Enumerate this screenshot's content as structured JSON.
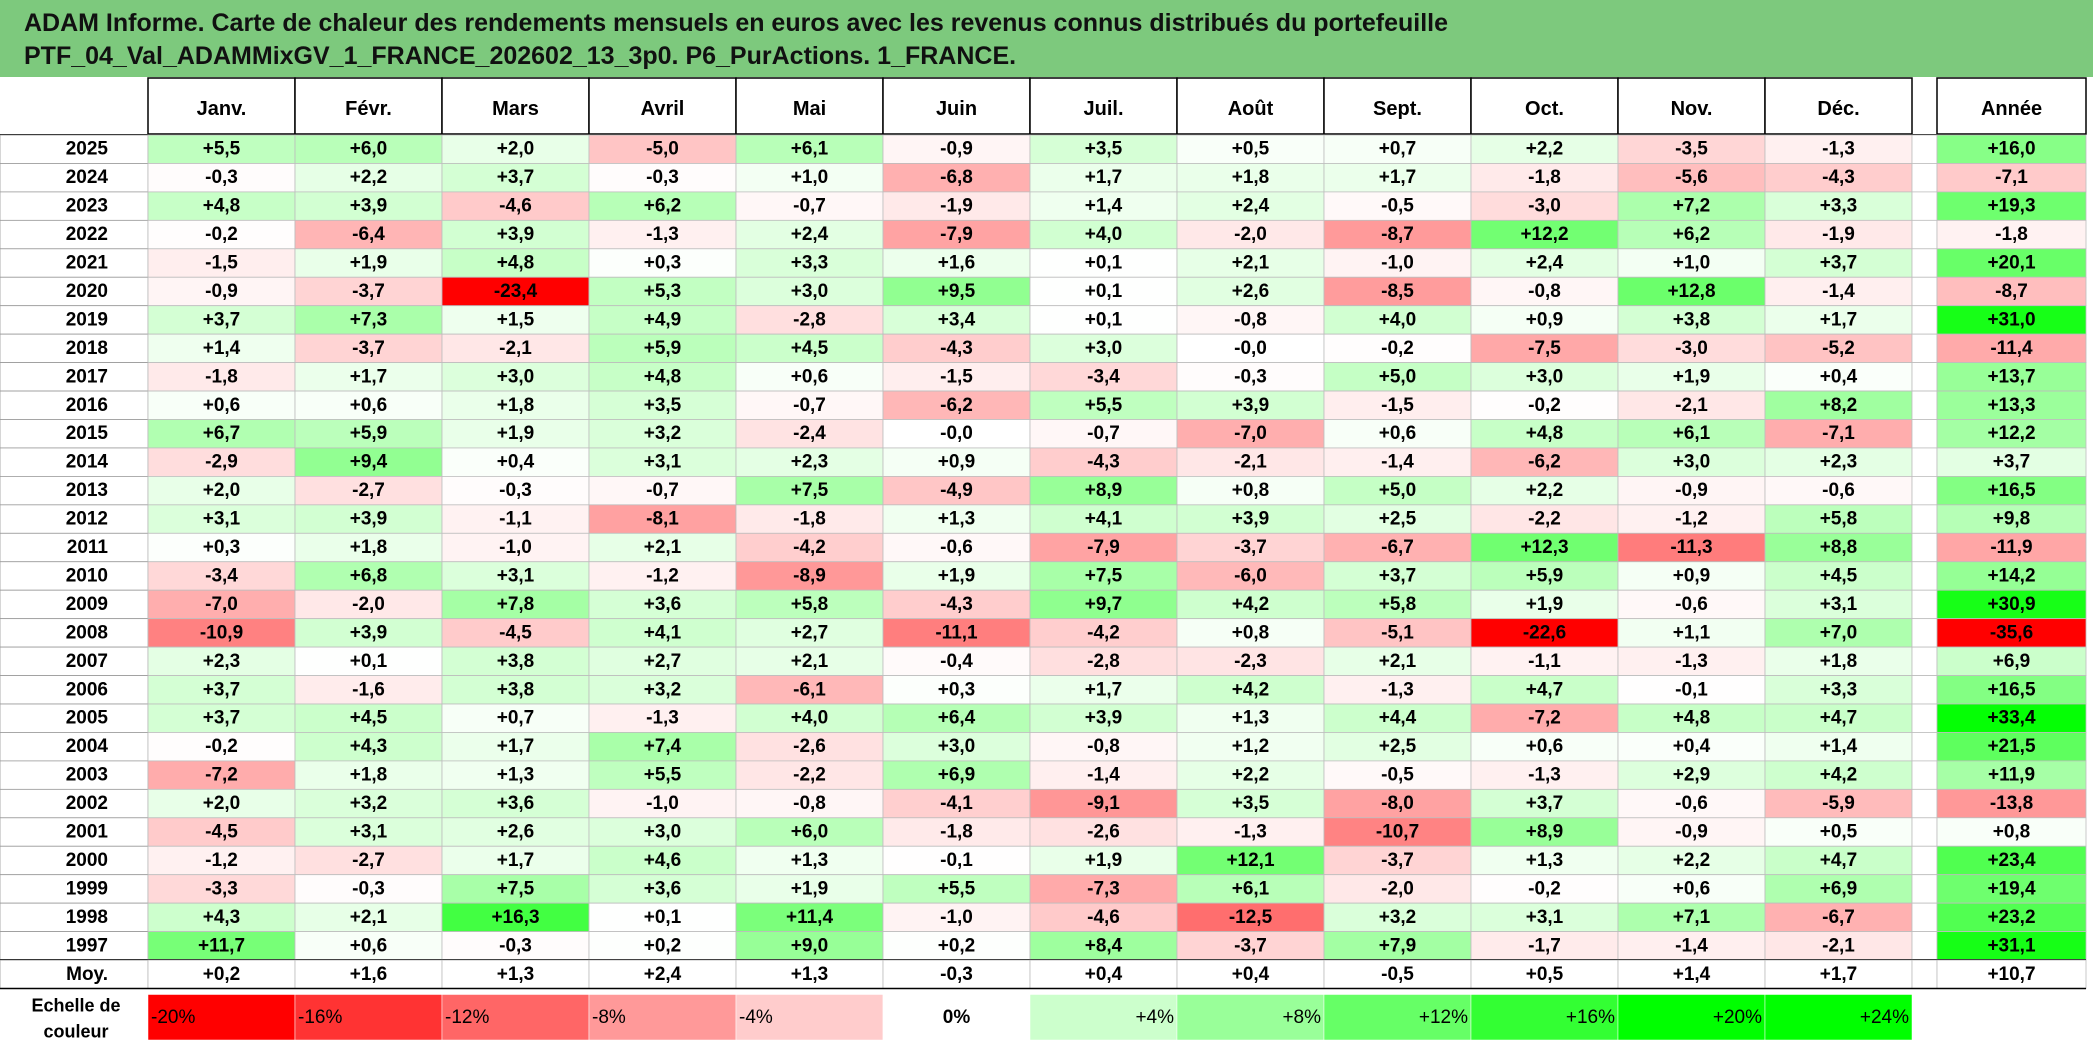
{
  "title": {
    "line1": "ADAM Informe. Carte de chaleur des rendements mensuels en euros avec les revenus connus distribués du portefeuille",
    "line2": "PTF_04_Val_ADAMMixGV_1_FRANCE_202602_13_3p0. P6_PurActions. 1_FRANCE."
  },
  "chart_data": {
    "type": "heatmap",
    "columns": [
      "Janv.",
      "Févr.",
      "Mars",
      "Avril",
      "Mai",
      "Juin",
      "Juil.",
      "Août",
      "Sept.",
      "Oct.",
      "Nov.",
      "Déc."
    ],
    "year_column": "Année",
    "rows": [
      {
        "label": "2025",
        "values": [
          "+5,5",
          "+6,0",
          "+2,0",
          "-5,0",
          "+6,1",
          "-0,9",
          "+3,5",
          "+0,5",
          "+0,7",
          "+2,2",
          "-3,5",
          "-1,3"
        ],
        "year": "+16,0"
      },
      {
        "label": "2024",
        "values": [
          "-0,3",
          "+2,2",
          "+3,7",
          "-0,3",
          "+1,0",
          "-6,8",
          "+1,7",
          "+1,8",
          "+1,7",
          "-1,8",
          "-5,6",
          "-4,3"
        ],
        "year": "-7,1"
      },
      {
        "label": "2023",
        "values": [
          "+4,8",
          "+3,9",
          "-4,6",
          "+6,2",
          "-0,7",
          "-1,9",
          "+1,4",
          "+2,4",
          "-0,5",
          "-3,0",
          "+7,2",
          "+3,3"
        ],
        "year": "+19,3"
      },
      {
        "label": "2022",
        "values": [
          "-0,2",
          "-6,4",
          "+3,9",
          "-1,3",
          "+2,4",
          "-7,9",
          "+4,0",
          "-2,0",
          "-8,7",
          "+12,2",
          "+6,2",
          "-1,9"
        ],
        "year": "-1,8"
      },
      {
        "label": "2021",
        "values": [
          "-1,5",
          "+1,9",
          "+4,8",
          "+0,3",
          "+3,3",
          "+1,6",
          "+0,1",
          "+2,1",
          "-1,0",
          "+2,4",
          "+1,0",
          "+3,7"
        ],
        "year": "+20,1"
      },
      {
        "label": "2020",
        "values": [
          "-0,9",
          "-3,7",
          "-23,4",
          "+5,3",
          "+3,0",
          "+9,5",
          "+0,1",
          "+2,6",
          "-8,5",
          "-0,8",
          "+12,8",
          "-1,4"
        ],
        "year": "-8,7"
      },
      {
        "label": "2019",
        "values": [
          "+3,7",
          "+7,3",
          "+1,5",
          "+4,9",
          "-2,8",
          "+3,4",
          "+0,1",
          "-0,8",
          "+4,0",
          "+0,9",
          "+3,8",
          "+1,7"
        ],
        "year": "+31,0"
      },
      {
        "label": "2018",
        "values": [
          "+1,4",
          "-3,7",
          "-2,1",
          "+5,9",
          "+4,5",
          "-4,3",
          "+3,0",
          "-0,0",
          "-0,2",
          "-7,5",
          "-3,0",
          "-5,2"
        ],
        "year": "-11,4"
      },
      {
        "label": "2017",
        "values": [
          "-1,8",
          "+1,7",
          "+3,0",
          "+4,8",
          "+0,6",
          "-1,5",
          "-3,4",
          "-0,3",
          "+5,0",
          "+3,0",
          "+1,9",
          "+0,4"
        ],
        "year": "+13,7"
      },
      {
        "label": "2016",
        "values": [
          "+0,6",
          "+0,6",
          "+1,8",
          "+3,5",
          "-0,7",
          "-6,2",
          "+5,5",
          "+3,9",
          "-1,5",
          "-0,2",
          "-2,1",
          "+8,2"
        ],
        "year": "+13,3"
      },
      {
        "label": "2015",
        "values": [
          "+6,7",
          "+5,9",
          "+1,9",
          "+3,2",
          "-2,4",
          "-0,0",
          "-0,7",
          "-7,0",
          "+0,6",
          "+4,8",
          "+6,1",
          "-7,1"
        ],
        "year": "+12,2"
      },
      {
        "label": "2014",
        "values": [
          "-2,9",
          "+9,4",
          "+0,4",
          "+3,1",
          "+2,3",
          "+0,9",
          "-4,3",
          "-2,1",
          "-1,4",
          "-6,2",
          "+3,0",
          "+2,3"
        ],
        "year": "+3,7"
      },
      {
        "label": "2013",
        "values": [
          "+2,0",
          "-2,7",
          "-0,3",
          "-0,7",
          "+7,5",
          "-4,9",
          "+8,9",
          "+0,8",
          "+5,0",
          "+2,2",
          "-0,9",
          "-0,6"
        ],
        "year": "+16,5"
      },
      {
        "label": "2012",
        "values": [
          "+3,1",
          "+3,9",
          "-1,1",
          "-8,1",
          "-1,8",
          "+1,3",
          "+4,1",
          "+3,9",
          "+2,5",
          "-2,2",
          "-1,2",
          "+5,8"
        ],
        "year": "+9,8"
      },
      {
        "label": "2011",
        "values": [
          "+0,3",
          "+1,8",
          "-1,0",
          "+2,1",
          "-4,2",
          "-0,6",
          "-7,9",
          "-3,7",
          "-6,7",
          "+12,3",
          "-11,3",
          "+8,8"
        ],
        "year": "-11,9"
      },
      {
        "label": "2010",
        "values": [
          "-3,4",
          "+6,8",
          "+3,1",
          "-1,2",
          "-8,9",
          "+1,9",
          "+7,5",
          "-6,0",
          "+3,7",
          "+5,9",
          "+0,9",
          "+4,5"
        ],
        "year": "+14,2"
      },
      {
        "label": "2009",
        "values": [
          "-7,0",
          "-2,0",
          "+7,8",
          "+3,6",
          "+5,8",
          "-4,3",
          "+9,7",
          "+4,2",
          "+5,8",
          "+1,9",
          "-0,6",
          "+3,1"
        ],
        "year": "+30,9"
      },
      {
        "label": "2008",
        "values": [
          "-10,9",
          "+3,9",
          "-4,5",
          "+4,1",
          "+2,7",
          "-11,1",
          "-4,2",
          "+0,8",
          "-5,1",
          "-22,6",
          "+1,1",
          "+7,0"
        ],
        "year": "-35,6"
      },
      {
        "label": "2007",
        "values": [
          "+2,3",
          "+0,1",
          "+3,8",
          "+2,7",
          "+2,1",
          "-0,4",
          "-2,8",
          "-2,3",
          "+2,1",
          "-1,1",
          "-1,3",
          "+1,8"
        ],
        "year": "+6,9"
      },
      {
        "label": "2006",
        "values": [
          "+3,7",
          "-1,6",
          "+3,8",
          "+3,2",
          "-6,1",
          "+0,3",
          "+1,7",
          "+4,2",
          "-1,3",
          "+4,7",
          "-0,1",
          "+3,3"
        ],
        "year": "+16,5"
      },
      {
        "label": "2005",
        "values": [
          "+3,7",
          "+4,5",
          "+0,7",
          "-1,3",
          "+4,0",
          "+6,4",
          "+3,9",
          "+1,3",
          "+4,4",
          "-7,2",
          "+4,8",
          "+4,7"
        ],
        "year": "+33,4"
      },
      {
        "label": "2004",
        "values": [
          "-0,2",
          "+4,3",
          "+1,7",
          "+7,4",
          "-2,6",
          "+3,0",
          "-0,8",
          "+1,2",
          "+2,5",
          "+0,6",
          "+0,4",
          "+1,4"
        ],
        "year": "+21,5"
      },
      {
        "label": "2003",
        "values": [
          "-7,2",
          "+1,8",
          "+1,3",
          "+5,5",
          "-2,2",
          "+6,9",
          "-1,4",
          "+2,2",
          "-0,5",
          "-1,3",
          "+2,9",
          "+4,2"
        ],
        "year": "+11,9"
      },
      {
        "label": "2002",
        "values": [
          "+2,0",
          "+3,2",
          "+3,6",
          "-1,0",
          "-0,8",
          "-4,1",
          "-9,1",
          "+3,5",
          "-8,0",
          "+3,7",
          "-0,6",
          "-5,9"
        ],
        "year": "-13,8"
      },
      {
        "label": "2001",
        "values": [
          "-4,5",
          "+3,1",
          "+2,6",
          "+3,0",
          "+6,0",
          "-1,8",
          "-2,6",
          "-1,3",
          "-10,7",
          "+8,9",
          "-0,9",
          "+0,5"
        ],
        "year": "+0,8"
      },
      {
        "label": "2000",
        "values": [
          "-1,2",
          "-2,7",
          "+1,7",
          "+4,6",
          "+1,3",
          "-0,1",
          "+1,9",
          "+12,1",
          "-3,7",
          "+1,3",
          "+2,2",
          "+4,7"
        ],
        "year": "+23,4"
      },
      {
        "label": "1999",
        "values": [
          "-3,3",
          "-0,3",
          "+7,5",
          "+3,6",
          "+1,9",
          "+5,5",
          "-7,3",
          "+6,1",
          "-2,0",
          "-0,2",
          "+0,6",
          "+6,9"
        ],
        "year": "+19,4"
      },
      {
        "label": "1998",
        "values": [
          "+4,3",
          "+2,1",
          "+16,3",
          "+0,1",
          "+11,4",
          "-1,0",
          "-4,6",
          "-12,5",
          "+3,2",
          "+3,1",
          "+7,1",
          "-6,7"
        ],
        "year": "+23,2"
      },
      {
        "label": "1997",
        "values": [
          "+11,7",
          "+0,6",
          "-0,3",
          "+0,2",
          "+9,0",
          "+0,2",
          "+8,4",
          "-3,7",
          "+7,9",
          "-1,7",
          "-1,4",
          "-2,1"
        ],
        "year": "+31,1"
      }
    ],
    "average": {
      "label": "Moy.",
      "values": [
        "+0,2",
        "+1,6",
        "+1,3",
        "+2,4",
        "+1,3",
        "-0,3",
        "+0,4",
        "+0,4",
        "-0,5",
        "+0,5",
        "+1,4",
        "+1,7"
      ],
      "year": "+10,7"
    },
    "scale": {
      "label_line1": "Echelle de",
      "label_line2": "couleur",
      "stops": [
        "-20%",
        "-16%",
        "-12%",
        "-8%",
        "-4%",
        "0%",
        "+4%",
        "+8%",
        "+12%",
        "+16%",
        "+20%",
        "+24%"
      ]
    },
    "colors": {
      "negative": "#ff0000",
      "neutral": "#ffffff",
      "positive": "#00ff00",
      "title_bg": "#7dc97d"
    }
  }
}
